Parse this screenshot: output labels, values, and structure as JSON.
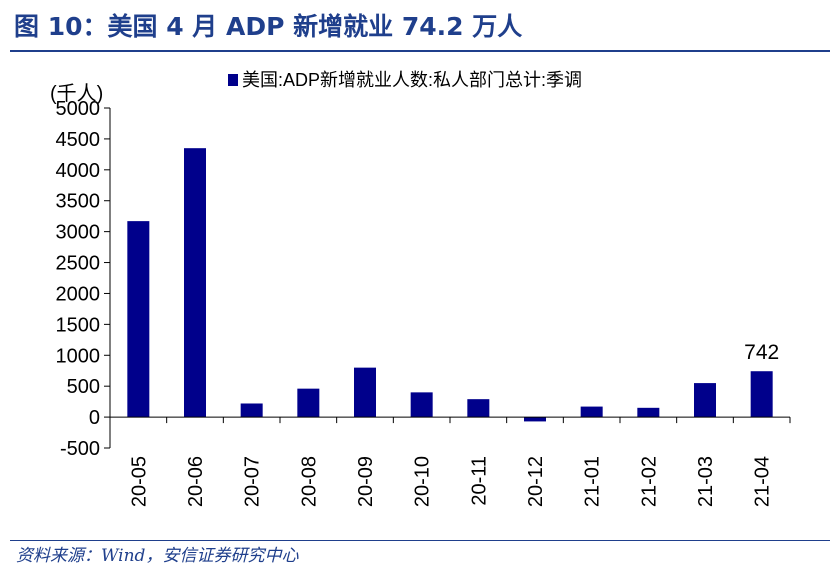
{
  "figure": {
    "title": "图 10：美国 4 月 ADP 新增就业 74.2 万人",
    "source": "资料来源：Wind，安信证券研究中心"
  },
  "chart_data": {
    "type": "bar",
    "title": "图 10：美国 4 月 ADP 新增就业 74.2 万人",
    "ylabel": "(千人)",
    "xlabel": "",
    "categories": [
      "20-05",
      "20-06",
      "20-07",
      "20-08",
      "20-09",
      "20-10",
      "20-11",
      "20-12",
      "21-01",
      "21-02",
      "21-03",
      "21-04"
    ],
    "series": [
      {
        "name": "美国:ADP新增就业人数:私人部门总计:季调",
        "values": [
          3170,
          4350,
          220,
          460,
          800,
          400,
          290,
          -70,
          170,
          150,
          550,
          742
        ],
        "color": "#00008b"
      }
    ],
    "ylim": [
      -500,
      5000
    ],
    "yticks": [
      -500,
      0,
      500,
      1000,
      1500,
      2000,
      2500,
      3000,
      3500,
      4000,
      4500,
      5000
    ],
    "annotations": [
      {
        "category": "21-04",
        "text": "742"
      }
    ],
    "legend": "top",
    "grid": false
  }
}
